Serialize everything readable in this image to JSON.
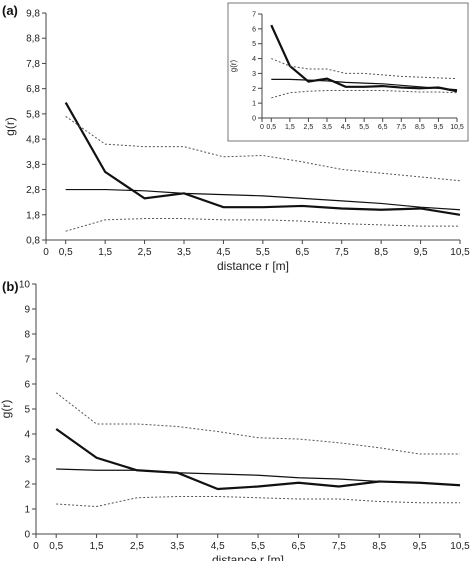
{
  "chart_data": [
    {
      "type": "line",
      "panel_label": "(a)",
      "xlabel": "distance r [m]",
      "ylabel": "g(r)",
      "x": [
        0.5,
        1.5,
        2.5,
        3.5,
        4.5,
        5.5,
        6.5,
        7.5,
        8.5,
        9.5,
        10.5
      ],
      "xticks": [
        "0",
        "0,5",
        "1,5",
        "2,5",
        "3,5",
        "4,5",
        "5,5",
        "6,5",
        "7,5",
        "8,5",
        "9,5",
        "10,5"
      ],
      "yticks": [
        "0,8",
        "1,8",
        "2,8",
        "3,8",
        "4,8",
        "5,8",
        "6,8",
        "7,8",
        "8,8",
        "9,8"
      ],
      "xlim": [
        0,
        10.5
      ],
      "ylim": [
        0.8,
        9.8
      ],
      "series": [
        {
          "style": "thick",
          "values": [
            6.25,
            3.5,
            2.45,
            2.65,
            2.1,
            2.1,
            2.15,
            2.05,
            2.0,
            2.05,
            1.8
          ]
        },
        {
          "style": "thin",
          "values": [
            2.8,
            2.8,
            2.75,
            2.65,
            2.6,
            2.55,
            2.45,
            2.35,
            2.25,
            2.1,
            2.0
          ]
        },
        {
          "style": "dotted",
          "values": [
            5.7,
            4.6,
            4.5,
            4.5,
            4.1,
            4.15,
            3.9,
            3.6,
            3.45,
            3.3,
            3.15
          ]
        },
        {
          "style": "dotted",
          "values": [
            1.15,
            1.6,
            1.65,
            1.65,
            1.6,
            1.6,
            1.55,
            1.45,
            1.4,
            1.35,
            1.35
          ]
        }
      ],
      "inset": {
        "ylabel": "g(r)",
        "xticks": [
          "0",
          "0,5",
          "1,5",
          "2,5",
          "3,5",
          "4,5",
          "5,5",
          "6,5",
          "7,5",
          "8,5",
          "9,5",
          "10,5"
        ],
        "yticks": [
          "0",
          "1",
          "2",
          "3",
          "4",
          "5",
          "6",
          "7"
        ],
        "xlim": [
          0,
          10.5
        ],
        "ylim": [
          0,
          7
        ],
        "series": [
          {
            "style": "thick",
            "values": [
              6.25,
              3.5,
              2.45,
              2.65,
              2.1,
              2.1,
              2.15,
              2.05,
              2.0,
              2.05,
              1.8
            ]
          },
          {
            "style": "thin",
            "values": [
              2.6,
              2.6,
              2.55,
              2.5,
              2.4,
              2.35,
              2.3,
              2.2,
              2.1,
              2.0,
              1.9
            ]
          },
          {
            "style": "dotted",
            "values": [
              4.0,
              3.5,
              3.3,
              3.3,
              3.0,
              3.0,
              2.9,
              2.8,
              2.75,
              2.7,
              2.65
            ]
          },
          {
            "style": "dotted",
            "values": [
              1.35,
              1.7,
              1.8,
              1.85,
              1.85,
              1.85,
              1.85,
              1.8,
              1.75,
              1.75,
              1.7
            ]
          }
        ]
      }
    },
    {
      "type": "line",
      "panel_label": "(b)",
      "xlabel": "distance r [m]",
      "ylabel": "g(r)",
      "x": [
        0.5,
        1.5,
        2.5,
        3.5,
        4.5,
        5.5,
        6.5,
        7.5,
        8.5,
        9.5,
        10.5
      ],
      "xticks": [
        "0",
        "0,5",
        "1,5",
        "2,5",
        "3,5",
        "4,5",
        "5,5",
        "6,5",
        "7,5",
        "8,5",
        "9,5",
        "10,5"
      ],
      "yticks": [
        "0",
        "1",
        "2",
        "3",
        "4",
        "5",
        "6",
        "7",
        "8",
        "9",
        "10"
      ],
      "xlim": [
        0,
        10.5
      ],
      "ylim": [
        0,
        10
      ],
      "series": [
        {
          "style": "thick",
          "values": [
            4.2,
            3.05,
            2.55,
            2.45,
            1.8,
            1.9,
            2.05,
            1.9,
            2.1,
            2.05,
            1.95
          ]
        },
        {
          "style": "thin",
          "values": [
            2.6,
            2.55,
            2.55,
            2.45,
            2.4,
            2.35,
            2.25,
            2.2,
            2.1,
            2.05,
            1.95
          ]
        },
        {
          "style": "dotted",
          "values": [
            5.65,
            4.4,
            4.4,
            4.3,
            4.1,
            3.85,
            3.8,
            3.65,
            3.45,
            3.2,
            3.2
          ]
        },
        {
          "style": "dotted",
          "values": [
            1.2,
            1.1,
            1.45,
            1.5,
            1.5,
            1.45,
            1.4,
            1.4,
            1.3,
            1.25,
            1.25
          ]
        }
      ]
    }
  ]
}
